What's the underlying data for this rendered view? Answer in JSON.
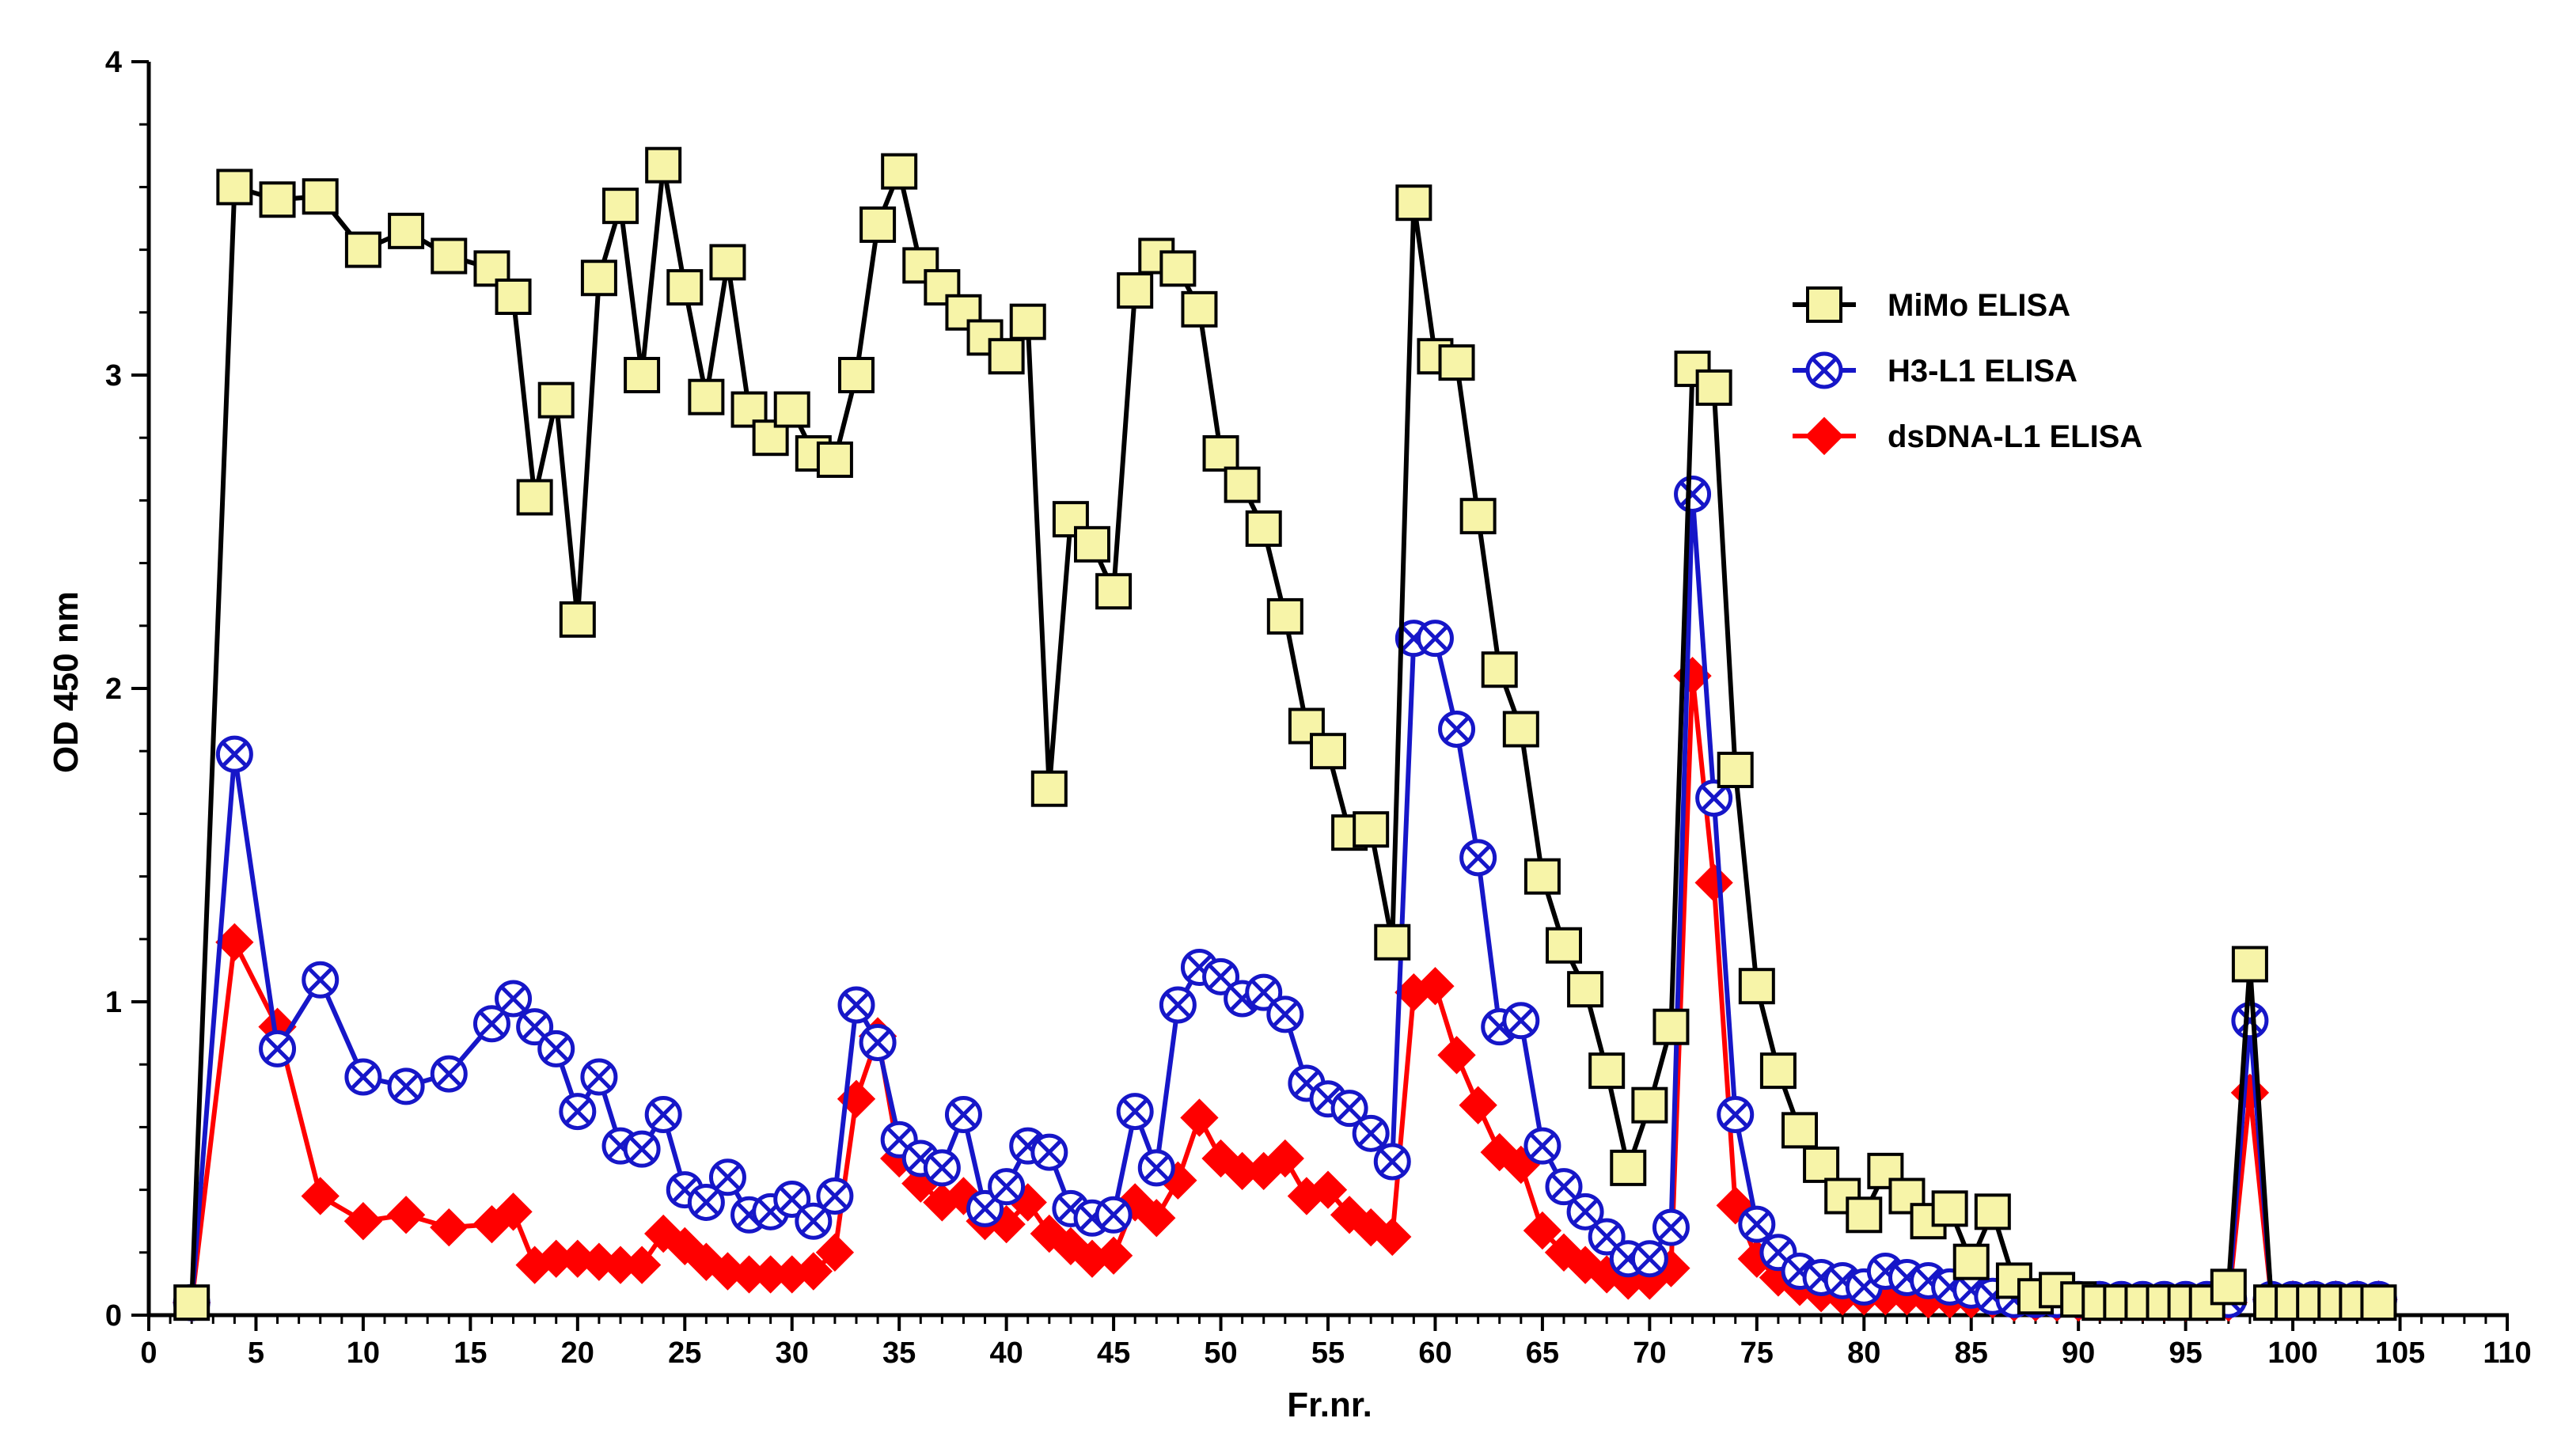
{
  "chart_data": {
    "type": "line",
    "title": "",
    "xlabel": "Fr.nr.",
    "ylabel": "OD 450 nm",
    "xlim": [
      0,
      110
    ],
    "ylim": [
      0,
      4
    ],
    "x_ticks": [
      "0",
      "5",
      "10",
      "15",
      "20",
      "25",
      "30",
      "35",
      "40",
      "45",
      "50",
      "55",
      "60",
      "65",
      "70",
      "75",
      "80",
      "85",
      "90",
      "95",
      "100",
      "105",
      "110"
    ],
    "y_ticks": [
      "0",
      "1",
      "2",
      "3",
      "4"
    ],
    "legend_position": "top-right",
    "series": [
      {
        "name": "MiMo ELISA",
        "color": "#000000",
        "marker": "square",
        "marker_fill": "#f7f4a8",
        "x": [
          2,
          4,
          6,
          8,
          10,
          12,
          14,
          16,
          17,
          18,
          19,
          20,
          21,
          22,
          23,
          24,
          25,
          26,
          27,
          28,
          29,
          30,
          31,
          32,
          33,
          34,
          35,
          36,
          37,
          38,
          39,
          40,
          41,
          42,
          43,
          44,
          45,
          46,
          47,
          48,
          49,
          50,
          51,
          52,
          53,
          54,
          55,
          56,
          57,
          58,
          59,
          60,
          61,
          62,
          63,
          64,
          65,
          66,
          67,
          68,
          69,
          70,
          71,
          72,
          73,
          74,
          75,
          76,
          77,
          78,
          79,
          80,
          81,
          82,
          83,
          84,
          85,
          86,
          87,
          88,
          89,
          90,
          91,
          92,
          93,
          94,
          95,
          96,
          97,
          98,
          99,
          100,
          101,
          102,
          103,
          104
        ],
        "y": [
          0.04,
          3.6,
          3.56,
          3.57,
          3.4,
          3.46,
          3.38,
          3.34,
          3.25,
          2.61,
          2.92,
          2.22,
          3.31,
          3.54,
          3.0,
          3.67,
          3.28,
          2.93,
          3.36,
          2.89,
          2.8,
          2.89,
          2.75,
          2.73,
          3.0,
          3.48,
          3.65,
          3.35,
          3.28,
          3.2,
          3.12,
          3.06,
          3.17,
          1.68,
          2.54,
          2.46,
          2.31,
          3.27,
          3.38,
          3.34,
          3.21,
          2.75,
          2.65,
          2.51,
          2.23,
          1.88,
          1.8,
          1.54,
          1.55,
          1.19,
          3.55,
          3.06,
          3.04,
          2.55,
          2.06,
          1.87,
          1.4,
          1.18,
          1.04,
          0.78,
          0.47,
          0.67,
          0.92,
          3.02,
          2.96,
          1.74,
          1.05,
          0.78,
          0.59,
          0.48,
          0.38,
          0.32,
          0.46,
          0.38,
          0.3,
          0.34,
          0.17,
          0.33,
          0.11,
          0.06,
          0.08,
          0.05,
          0.04,
          0.04,
          0.04,
          0.04,
          0.04,
          0.04,
          0.09,
          1.12,
          0.04,
          0.04,
          0.04,
          0.04,
          0.04,
          0.04
        ]
      },
      {
        "name": "H3-L1 ELISA",
        "color": "#1616c8",
        "marker": "circle-x",
        "marker_fill": "#ffffff",
        "x": [
          2,
          4,
          6,
          8,
          10,
          12,
          14,
          16,
          17,
          18,
          19,
          20,
          21,
          22,
          23,
          24,
          25,
          26,
          27,
          28,
          29,
          30,
          31,
          32,
          33,
          34,
          35,
          36,
          37,
          38,
          39,
          40,
          41,
          42,
          43,
          44,
          45,
          46,
          47,
          48,
          49,
          50,
          51,
          52,
          53,
          54,
          55,
          56,
          57,
          58,
          59,
          60,
          61,
          62,
          63,
          64,
          65,
          66,
          67,
          68,
          69,
          70,
          71,
          72,
          73,
          74,
          75,
          76,
          77,
          78,
          79,
          80,
          81,
          82,
          83,
          84,
          85,
          86,
          87,
          88,
          89,
          90,
          91,
          92,
          93,
          94,
          95,
          96,
          97,
          98,
          99,
          100,
          101,
          102,
          103,
          104
        ],
        "y": [
          0.04,
          1.79,
          0.85,
          1.07,
          0.76,
          0.73,
          0.77,
          0.93,
          1.01,
          0.92,
          0.85,
          0.65,
          0.76,
          0.54,
          0.53,
          0.64,
          0.4,
          0.36,
          0.44,
          0.32,
          0.33,
          0.37,
          0.3,
          0.38,
          0.99,
          0.87,
          0.56,
          0.5,
          0.47,
          0.64,
          0.34,
          0.41,
          0.54,
          0.52,
          0.34,
          0.31,
          0.32,
          0.65,
          0.47,
          0.99,
          1.11,
          1.08,
          1.01,
          1.03,
          0.96,
          0.74,
          0.69,
          0.66,
          0.58,
          0.49,
          2.16,
          2.16,
          1.87,
          1.46,
          0.92,
          0.94,
          0.54,
          0.41,
          0.33,
          0.25,
          0.18,
          0.18,
          0.28,
          2.62,
          1.65,
          0.64,
          0.29,
          0.2,
          0.14,
          0.12,
          0.11,
          0.09,
          0.14,
          0.12,
          0.11,
          0.09,
          0.08,
          0.06,
          0.05,
          0.05,
          0.05,
          0.05,
          0.05,
          0.05,
          0.05,
          0.05,
          0.05,
          0.05,
          0.05,
          0.94,
          0.05,
          0.05,
          0.05,
          0.05,
          0.05,
          0.05
        ]
      },
      {
        "name": "dsDNA-L1 ELISA",
        "color": "#ff0000",
        "marker": "diamond",
        "marker_fill": "#ff0000",
        "x": [
          2,
          4,
          6,
          8,
          10,
          12,
          14,
          16,
          17,
          18,
          19,
          20,
          21,
          22,
          23,
          24,
          25,
          26,
          27,
          28,
          29,
          30,
          31,
          32,
          33,
          34,
          35,
          36,
          37,
          38,
          39,
          40,
          41,
          42,
          43,
          44,
          45,
          46,
          47,
          48,
          49,
          50,
          51,
          52,
          53,
          54,
          55,
          56,
          57,
          58,
          59,
          60,
          61,
          62,
          63,
          64,
          65,
          66,
          67,
          68,
          69,
          70,
          71,
          72,
          73,
          74,
          75,
          76,
          77,
          78,
          79,
          80,
          81,
          82,
          83,
          84,
          85,
          86,
          87,
          88,
          89,
          90,
          91,
          92,
          93,
          94,
          95,
          96,
          97,
          98,
          99,
          100,
          101,
          102,
          103,
          104
        ],
        "y": [
          0.04,
          1.19,
          0.92,
          0.38,
          0.3,
          0.32,
          0.28,
          0.29,
          0.33,
          0.16,
          0.18,
          0.18,
          0.17,
          0.16,
          0.16,
          0.26,
          0.22,
          0.17,
          0.14,
          0.13,
          0.13,
          0.13,
          0.14,
          0.2,
          0.69,
          0.89,
          0.5,
          0.42,
          0.36,
          0.38,
          0.3,
          0.29,
          0.36,
          0.26,
          0.22,
          0.18,
          0.19,
          0.36,
          0.31,
          0.43,
          0.63,
          0.5,
          0.46,
          0.46,
          0.5,
          0.38,
          0.4,
          0.32,
          0.28,
          0.25,
          1.03,
          1.05,
          0.83,
          0.67,
          0.52,
          0.48,
          0.27,
          0.2,
          0.16,
          0.13,
          0.11,
          0.11,
          0.15,
          2.04,
          1.38,
          0.35,
          0.18,
          0.12,
          0.09,
          0.07,
          0.06,
          0.06,
          0.06,
          0.06,
          0.05,
          0.05,
          0.05,
          0.05,
          0.04,
          0.04,
          0.04,
          0.04,
          0.04,
          0.04,
          0.04,
          0.04,
          0.04,
          0.04,
          0.04,
          0.71,
          0.05,
          0.05,
          0.05,
          0.05,
          0.05,
          0.05
        ]
      }
    ]
  }
}
